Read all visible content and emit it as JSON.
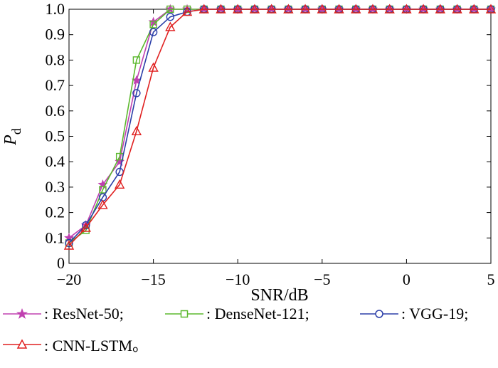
{
  "chart_data": {
    "type": "line",
    "xlabel": "SNR/dB",
    "ylabel": "P",
    "ylabel_sub": "d",
    "xlim": [
      -20,
      5
    ],
    "ylim": [
      0,
      1.0
    ],
    "xticks": [
      -20,
      -15,
      -10,
      -5,
      0,
      5
    ],
    "xtick_labels": [
      "−20",
      "−15",
      "−10",
      "−5",
      "0",
      "5"
    ],
    "yticks": [
      0,
      0.1,
      0.2,
      0.3,
      0.4,
      0.5,
      0.6,
      0.7,
      0.8,
      0.9,
      1.0
    ],
    "ytick_labels": [
      "0",
      "0.1",
      "0.2",
      "0.3",
      "0.4",
      "0.5",
      "0.6",
      "0.7",
      "0.8",
      "0.9",
      "1.0"
    ],
    "x": [
      -20,
      -19,
      -18,
      -17,
      -16,
      -15,
      -14,
      -13,
      -12,
      -11,
      -10,
      -9,
      -8,
      -7,
      -6,
      -5,
      -4,
      -3,
      -2,
      -1,
      0,
      1,
      2,
      3,
      4,
      5
    ],
    "grid": false,
    "legend_position": "bottom",
    "series": [
      {
        "name": ": ResNet-50;",
        "color": "#c040b0",
        "marker": "star",
        "values": [
          0.1,
          0.15,
          0.31,
          0.4,
          0.72,
          0.95,
          1.0,
          1.0,
          1.0,
          1.0,
          1.0,
          1.0,
          1.0,
          1.0,
          1.0,
          1.0,
          1.0,
          1.0,
          1.0,
          1.0,
          1.0,
          1.0,
          1.0,
          1.0,
          1.0,
          1.0
        ]
      },
      {
        "name": ": DenseNet-121;",
        "color": "#5cb82e",
        "marker": "square",
        "values": [
          0.08,
          0.13,
          0.29,
          0.42,
          0.8,
          0.94,
          1.0,
          1.0,
          1.0,
          1.0,
          1.0,
          1.0,
          1.0,
          1.0,
          1.0,
          1.0,
          1.0,
          1.0,
          1.0,
          1.0,
          1.0,
          1.0,
          1.0,
          1.0,
          1.0,
          1.0
        ]
      },
      {
        "name": ": VGG-19;",
        "color": "#2b3ea8",
        "marker": "circle",
        "values": [
          0.08,
          0.15,
          0.26,
          0.36,
          0.67,
          0.91,
          0.97,
          0.99,
          1.0,
          1.0,
          1.0,
          1.0,
          1.0,
          1.0,
          1.0,
          1.0,
          1.0,
          1.0,
          1.0,
          1.0,
          1.0,
          1.0,
          1.0,
          1.0,
          1.0,
          1.0
        ]
      },
      {
        "name": ": CNN-LSTM。",
        "color": "#e02020",
        "marker": "triangle",
        "values": [
          0.07,
          0.14,
          0.23,
          0.31,
          0.52,
          0.77,
          0.93,
          0.99,
          1.0,
          1.0,
          1.0,
          1.0,
          1.0,
          1.0,
          1.0,
          1.0,
          1.0,
          1.0,
          1.0,
          1.0,
          1.0,
          1.0,
          1.0,
          1.0,
          1.0,
          1.0
        ]
      }
    ]
  }
}
